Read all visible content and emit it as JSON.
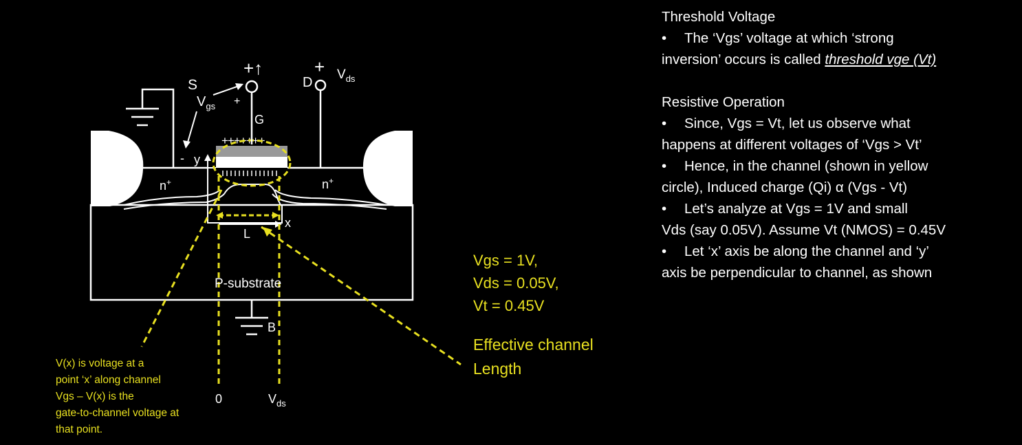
{
  "notes": {
    "threshold_heading": "Threshold Voltage",
    "threshold_bullet_1a": "The ‘Vgs’ voltage at which ‘strong",
    "threshold_bullet_1b": "inversion’ occurs is called ",
    "threshold_bullet_1_emph": "threshold vge (Vt)",
    "resistive_heading": "Resistive Operation",
    "bullets": [
      [
        "Since, Vgs = Vt, let us observe what",
        "happens at different voltages of ‘Vgs > Vt’"
      ],
      [
        "Hence, in the channel (shown in yellow",
        "circle), Induced charge (Qi) α  (Vgs - Vt)"
      ],
      [
        "Let’s analyze at Vgs = 1V and small",
        "Vds (say 0.05V). Assume Vt (NMOS) = 0.45V"
      ],
      [
        "Let ‘x’ axis be along the channel and ‘y’",
        "axis be perpendicular to channel, as shown"
      ]
    ],
    "bullet_char": "•"
  },
  "params": [
    "Vgs = 1V,",
    "Vds = 0.05V,",
    "Vt = 0.45V"
  ],
  "effective_label": [
    "Effective channel",
    "Length"
  ],
  "vx_note": [
    "V(x) is voltage at a",
    "point ‘x’ along channel",
    "Vgs – V(x) is the",
    "gate-to-channel voltage at",
    "that point."
  ],
  "labels": {
    "source": "S",
    "drain": "D",
    "gate": "G",
    "body": "B",
    "vgs_main": "V",
    "vgs_sub": "gs",
    "vds_main": "V",
    "vds_sub": "ds",
    "plus": "+",
    "minus": "-",
    "gate_plus_up": "+↑",
    "gate_charges": "+++++++",
    "n_region": "n",
    "n_sup": "+",
    "y_axis": "y",
    "x_axis": "x",
    "length": "L",
    "substrate": "P-substrate",
    "zero": "0",
    "vds_bottom_main": "V",
    "vds_bottom_sub": "ds"
  },
  "colors": {
    "accent_yellow": "#e8e020",
    "background": "#000000",
    "foreground": "#ffffff"
  }
}
